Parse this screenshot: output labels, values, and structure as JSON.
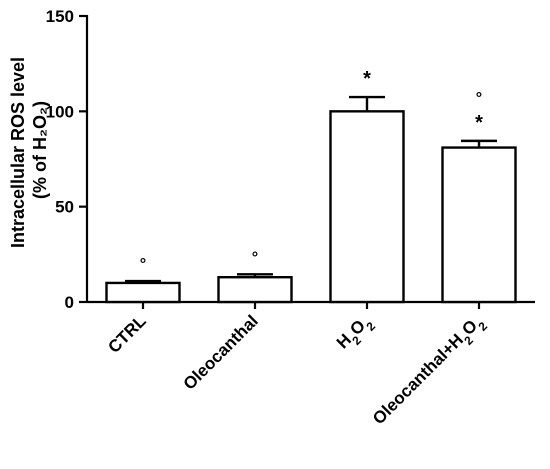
{
  "chart_data": {
    "type": "bar",
    "categories": [
      "CTRL",
      "Oleocanthal",
      "H₂O₂",
      "Oleocanthal+H₂O₂"
    ],
    "values": [
      10,
      13,
      100,
      81
    ],
    "errors": [
      1,
      1.5,
      7.5,
      3.5
    ],
    "significance": [
      [
        "°"
      ],
      [
        "°"
      ],
      [
        "*"
      ],
      [
        "*",
        "°"
      ]
    ],
    "ylim": [
      0,
      150
    ],
    "yticks": [
      "0",
      "50",
      "100",
      "150"
    ],
    "ylabel_line1": "Intracellular ROS level",
    "ylabel_line2": "(% of H₂O₂)",
    "xlabel": "",
    "title": "",
    "grid": false
  }
}
